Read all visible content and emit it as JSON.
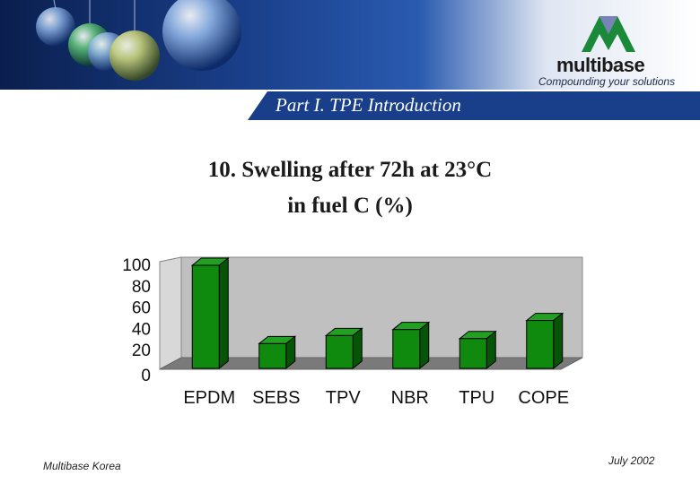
{
  "header": {
    "logo_word_a": "multi",
    "logo_word_b": "base",
    "logo_tagline": "Compounding your solutions"
  },
  "banner": {
    "title": "Part I. TPE Introduction"
  },
  "slide": {
    "title_line1": "10. Swelling after 72h at 23°C",
    "title_line2": "in fuel C (%)"
  },
  "footer": {
    "left": "Multibase Korea",
    "right": "July 2002"
  },
  "colors": {
    "bar": "#0f8a0f",
    "bar_top": "#22a022",
    "bar_side": "#065506",
    "wall": "#c0c0c0",
    "floor": "#7a7a7a",
    "banner": "#1a3f8a"
  },
  "chart_data": {
    "type": "bar",
    "title": "10. Swelling after 72h at 23°C in fuel C (%)",
    "categories": [
      "EPDM",
      "SEBS",
      "TPV",
      "NBR",
      "TPU",
      "COPE"
    ],
    "values": [
      100,
      22,
      30,
      36,
      27,
      45
    ],
    "ylim": [
      0,
      100
    ],
    "yticks": [
      0,
      20,
      40,
      60,
      80,
      100
    ],
    "grid": false,
    "legend": "none",
    "style": "3d"
  }
}
